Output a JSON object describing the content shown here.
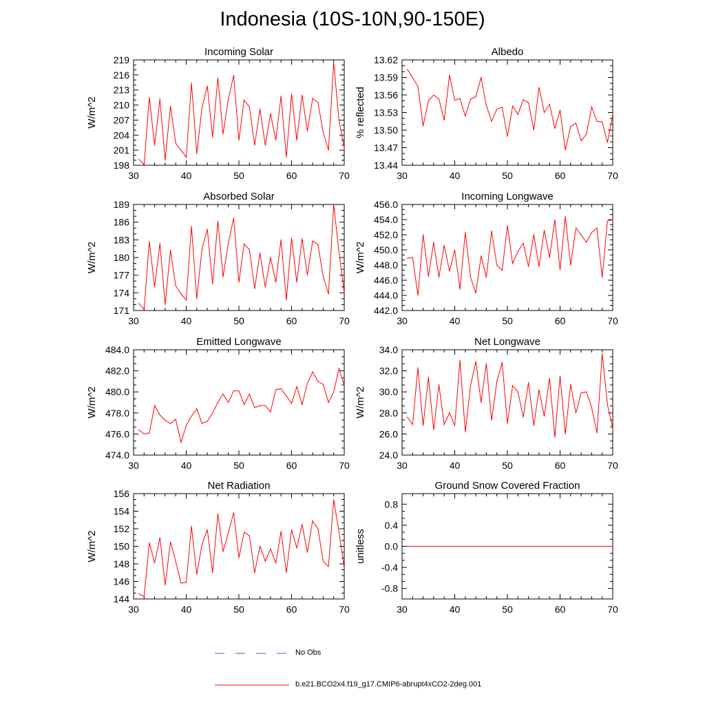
{
  "figure": {
    "title": "Indonesia (10S-10N,90-150E)"
  },
  "colors": {
    "series": "#ff0000",
    "obs": "#3a5fcd",
    "axis": "#000000"
  },
  "legend": {
    "obs_label": "No Obs",
    "model_label": "b.e21.BCO2x4.f19_g17.CMIP6-abrupt4xCO2-2deg.001"
  },
  "chart_data": [
    {
      "type": "line",
      "title": "Incoming Solar",
      "ylabel": "W/m^2",
      "xlim": [
        30,
        70
      ],
      "ylim": [
        198,
        219
      ],
      "yticks": [
        "198",
        "201",
        "204",
        "207",
        "210",
        "213",
        "216",
        "219"
      ],
      "xticks": [
        "30",
        "40",
        "50",
        "60",
        "70"
      ],
      "x": [
        31,
        32,
        33,
        34,
        35,
        36,
        37,
        38,
        39,
        40,
        41,
        42,
        43,
        44,
        45,
        46,
        47,
        48,
        49,
        50,
        51,
        52,
        53,
        54,
        55,
        56,
        57,
        58,
        59,
        60,
        61,
        62,
        63,
        64,
        65,
        66,
        67,
        68,
        69,
        70
      ],
      "values": [
        199.2,
        198.1,
        211.5,
        202.0,
        211.2,
        199.0,
        209.8,
        202.4,
        201.0,
        199.6,
        214.4,
        200.3,
        209.5,
        213.8,
        203.6,
        215.4,
        204.2,
        211.2,
        215.9,
        203.0,
        211.0,
        209.6,
        202.0,
        209.2,
        202.0,
        208.3,
        203.0,
        211.8,
        199.6,
        212.2,
        203.0,
        212.0,
        204.8,
        211.3,
        210.5,
        204.6,
        201.0,
        218.5,
        207.0,
        201.5
      ]
    },
    {
      "type": "line",
      "title": "Albedo",
      "ylabel": "% reflected",
      "xlim": [
        30,
        70
      ],
      "ylim": [
        13.44,
        13.62
      ],
      "yticks": [
        "13.44",
        "13.47",
        "13.50",
        "13.53",
        "13.56",
        "13.59",
        "13.62"
      ],
      "xticks": [
        "30",
        "40",
        "50",
        "60",
        "70"
      ],
      "x": [
        31,
        32,
        33,
        34,
        35,
        36,
        37,
        38,
        39,
        40,
        41,
        42,
        43,
        44,
        45,
        46,
        47,
        48,
        49,
        50,
        51,
        52,
        53,
        54,
        55,
        56,
        57,
        58,
        59,
        60,
        61,
        62,
        63,
        64,
        65,
        66,
        67,
        68,
        69,
        70
      ],
      "values": [
        13.604,
        13.59,
        13.575,
        13.507,
        13.55,
        13.56,
        13.553,
        13.517,
        13.594,
        13.551,
        13.554,
        13.524,
        13.553,
        13.557,
        13.59,
        13.542,
        13.515,
        13.536,
        13.539,
        13.489,
        13.541,
        13.527,
        13.552,
        13.547,
        13.5,
        13.573,
        13.53,
        13.544,
        13.503,
        13.534,
        13.466,
        13.506,
        13.512,
        13.482,
        13.493,
        13.54,
        13.515,
        13.514,
        13.479,
        13.527
      ]
    },
    {
      "type": "line",
      "title": "Absorbed Solar",
      "ylabel": "W/m^2",
      "xlim": [
        30,
        70
      ],
      "ylim": [
        171,
        189
      ],
      "yticks": [
        "171",
        "174",
        "177",
        "180",
        "183",
        "186",
        "189"
      ],
      "xticks": [
        "30",
        "40",
        "50",
        "60",
        "70"
      ],
      "x": [
        31,
        32,
        33,
        34,
        35,
        36,
        37,
        38,
        39,
        40,
        41,
        42,
        43,
        44,
        45,
        46,
        47,
        48,
        49,
        50,
        51,
        52,
        53,
        54,
        55,
        56,
        57,
        58,
        59,
        60,
        61,
        62,
        63,
        64,
        65,
        66,
        67,
        68,
        69,
        70
      ],
      "values": [
        172.2,
        171.2,
        182.7,
        175.0,
        182.4,
        172.0,
        181.3,
        175.2,
        173.8,
        172.8,
        185.3,
        173.0,
        181.5,
        184.8,
        175.5,
        186.2,
        176.7,
        182.5,
        186.7,
        175.8,
        182.3,
        181.3,
        174.7,
        180.8,
        175.0,
        180.0,
        175.8,
        183.0,
        172.8,
        183.3,
        175.8,
        183.2,
        177.0,
        182.8,
        182.2,
        176.8,
        173.8,
        189.0,
        181.0,
        174.0
      ]
    },
    {
      "type": "line",
      "title": "Incoming Longwave",
      "ylabel": "W/m^2",
      "xlim": [
        30,
        70
      ],
      "ylim": [
        442.0,
        456.0
      ],
      "yticks": [
        "442.0",
        "444.0",
        "446.0",
        "448.0",
        "450.0",
        "452.0",
        "454.0",
        "456.0"
      ],
      "xticks": [
        "30",
        "40",
        "50",
        "60",
        "70"
      ],
      "x": [
        31,
        32,
        33,
        34,
        35,
        36,
        37,
        38,
        39,
        40,
        41,
        42,
        43,
        44,
        45,
        46,
        47,
        48,
        49,
        50,
        51,
        52,
        53,
        54,
        55,
        56,
        57,
        58,
        59,
        60,
        61,
        62,
        63,
        64,
        65,
        66,
        67,
        68,
        69,
        70
      ],
      "values": [
        448.9,
        449.0,
        444.0,
        452.0,
        446.5,
        451.0,
        446.4,
        450.6,
        447.2,
        450.0,
        444.8,
        452.3,
        446.4,
        444.3,
        449.2,
        446.4,
        452.5,
        448.0,
        447.3,
        453.2,
        448.2,
        449.8,
        450.9,
        447.8,
        452.0,
        447.8,
        452.6,
        449.0,
        454.0,
        447.4,
        454.4,
        448.0,
        452.9,
        452.0,
        451.0,
        452.3,
        452.9,
        446.4,
        453.8,
        454.0
      ]
    },
    {
      "type": "line",
      "title": "Emitted Longwave",
      "ylabel": "W/m^2",
      "xlim": [
        30,
        70
      ],
      "ylim": [
        474.0,
        484.0
      ],
      "yticks": [
        "474.0",
        "476.0",
        "478.0",
        "480.0",
        "482.0",
        "484.0"
      ],
      "xticks": [
        "30",
        "40",
        "50",
        "60",
        "70"
      ],
      "x": [
        31,
        32,
        33,
        34,
        35,
        36,
        37,
        38,
        39,
        40,
        41,
        42,
        43,
        44,
        45,
        46,
        47,
        48,
        49,
        50,
        51,
        52,
        53,
        54,
        55,
        56,
        57,
        58,
        59,
        60,
        61,
        62,
        63,
        64,
        65,
        66,
        67,
        68,
        69,
        70
      ],
      "values": [
        476.4,
        476.0,
        476.1,
        478.7,
        477.8,
        477.3,
        477.0,
        477.4,
        475.2,
        476.8,
        477.7,
        478.4,
        477.0,
        477.2,
        478.0,
        479.0,
        479.8,
        479.0,
        480.1,
        480.1,
        478.8,
        479.8,
        478.5,
        478.7,
        478.7,
        478.1,
        480.2,
        480.3,
        479.6,
        478.9,
        480.5,
        478.8,
        480.8,
        481.9,
        481.0,
        480.7,
        479.0,
        480.0,
        482.2,
        480.6
      ]
    },
    {
      "type": "line",
      "title": "Net Longwave",
      "ylabel": "W/m^2",
      "xlim": [
        30,
        70
      ],
      "ylim": [
        24.0,
        34.0
      ],
      "yticks": [
        "24.0",
        "26.0",
        "28.0",
        "30.0",
        "32.0",
        "34.0"
      ],
      "xticks": [
        "30",
        "40",
        "50",
        "60",
        "70"
      ],
      "x": [
        31,
        32,
        33,
        34,
        35,
        36,
        37,
        38,
        39,
        40,
        41,
        42,
        43,
        44,
        45,
        46,
        47,
        48,
        49,
        50,
        51,
        52,
        53,
        54,
        55,
        56,
        57,
        58,
        59,
        60,
        61,
        62,
        63,
        64,
        65,
        66,
        67,
        68,
        69,
        70
      ],
      "values": [
        27.6,
        26.9,
        32.3,
        26.8,
        31.4,
        26.4,
        30.7,
        26.9,
        28.0,
        26.8,
        33.0,
        26.2,
        30.6,
        32.9,
        29.0,
        32.7,
        27.3,
        31.0,
        32.8,
        27.0,
        30.6,
        30.0,
        27.6,
        30.9,
        26.8,
        30.2,
        27.7,
        31.3,
        25.7,
        31.5,
        26.0,
        30.7,
        28.0,
        29.9,
        30.0,
        28.5,
        26.1,
        33.6,
        28.8,
        26.5
      ]
    },
    {
      "type": "line",
      "title": "Net Radiation",
      "ylabel": "W/m^2",
      "xlim": [
        30,
        70
      ],
      "ylim": [
        144,
        156
      ],
      "yticks": [
        "144",
        "146",
        "148",
        "150",
        "152",
        "154",
        "156"
      ],
      "xticks": [
        "30",
        "40",
        "50",
        "60",
        "70"
      ],
      "x": [
        31,
        32,
        33,
        34,
        35,
        36,
        37,
        38,
        39,
        40,
        41,
        42,
        43,
        44,
        45,
        46,
        47,
        48,
        49,
        50,
        51,
        52,
        53,
        54,
        55,
        56,
        57,
        58,
        59,
        60,
        61,
        62,
        63,
        64,
        65,
        66,
        67,
        68,
        69,
        70
      ],
      "values": [
        144.6,
        144.3,
        150.4,
        148.1,
        151.0,
        145.6,
        150.5,
        148.3,
        145.8,
        145.9,
        152.3,
        146.8,
        150.2,
        151.9,
        147.0,
        153.7,
        149.4,
        151.6,
        153.8,
        148.7,
        151.6,
        151.2,
        147.0,
        150.0,
        148.3,
        149.7,
        148.1,
        151.7,
        147.0,
        151.9,
        149.8,
        152.5,
        149.3,
        152.9,
        152.0,
        148.3,
        147.7,
        155.3,
        151.7,
        147.5
      ]
    },
    {
      "type": "line",
      "title": "Ground Snow Covered Fraction",
      "ylabel": "unitless",
      "xlim": [
        30,
        70
      ],
      "ylim": [
        -1.0,
        1.0
      ],
      "yticks": [
        "-0.8",
        "-0.4",
        "0.0",
        "0.4",
        "0.8"
      ],
      "ytick_values": [
        -0.8,
        -0.4,
        0.0,
        0.4,
        0.8
      ],
      "xticks": [
        "30",
        "40",
        "50",
        "60",
        "70"
      ],
      "x": [
        31,
        70
      ],
      "values": [
        0.0,
        0.0
      ]
    }
  ]
}
